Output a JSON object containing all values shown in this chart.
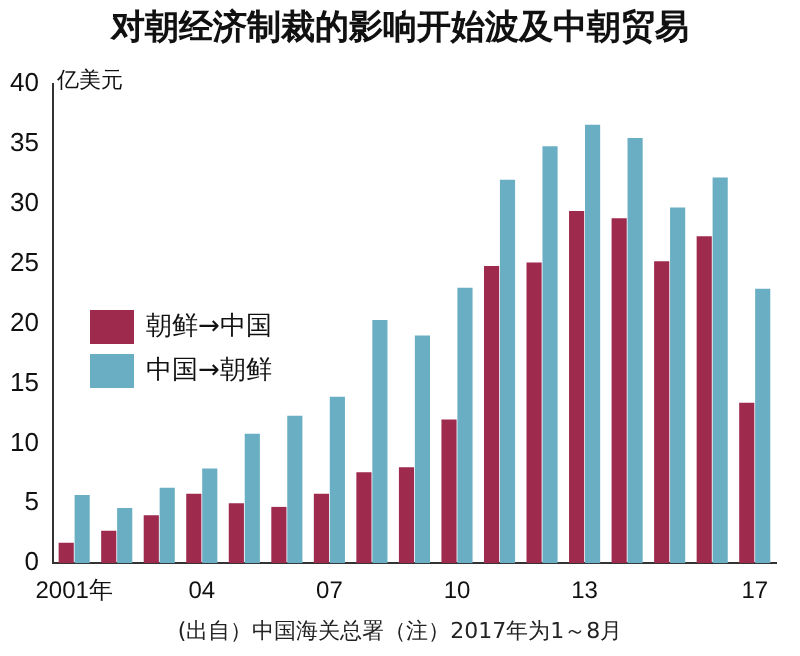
{
  "chart_data": {
    "type": "bar",
    "title": "对朝经济制裁的影响开始波及中朝贸易",
    "ylabel": "亿美元",
    "categories": [
      "2001年",
      null,
      null,
      "04",
      null,
      null,
      "07",
      null,
      null,
      "10",
      null,
      null,
      "13",
      null,
      null,
      null,
      "17"
    ],
    "series": [
      {
        "name": "朝鲜→中国",
        "color": "#9e2a4e",
        "values": [
          1.7,
          2.7,
          4.0,
          5.8,
          5.0,
          4.7,
          5.8,
          7.6,
          8.0,
          12.0,
          24.8,
          25.1,
          29.4,
          28.8,
          25.2,
          27.3,
          13.4
        ]
      },
      {
        "name": "中国→朝鲜",
        "color": "#6aaec4",
        "values": [
          5.7,
          4.6,
          6.3,
          7.9,
          10.8,
          12.3,
          13.9,
          20.3,
          19.0,
          23.0,
          32.0,
          34.8,
          36.6,
          35.5,
          29.7,
          32.2,
          22.9
        ]
      }
    ],
    "ylim": [
      0,
      40
    ],
    "yticks": [
      0,
      5,
      10,
      15,
      20,
      25,
      30,
      35,
      40
    ],
    "grid": false,
    "legend": "left",
    "annotations": [
      "(出自）中国海关总署（注）2017年为1～8月"
    ]
  }
}
